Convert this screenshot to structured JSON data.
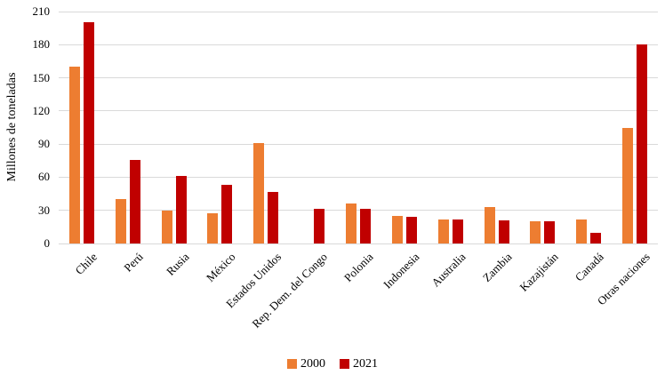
{
  "chart_data": {
    "type": "bar",
    "title": "",
    "xlabel": "",
    "ylabel": "Millones de toneladas",
    "ylim": [
      0,
      210
    ],
    "yticks": [
      0,
      30,
      60,
      90,
      120,
      150,
      180,
      210
    ],
    "grid": true,
    "legend_position": "bottom-center",
    "categories": [
      "Chile",
      "Perú",
      "Rusia",
      "México",
      "Estados Unidos",
      "Rep. Dem. del Congo",
      "Polonia",
      "Indonesia",
      "Australia",
      "Zambia",
      "Kazajistán",
      "Canadá",
      "Otras naciones"
    ],
    "series": [
      {
        "name": "2000",
        "color": "#ED7D31",
        "values": [
          160,
          40,
          30,
          27,
          91,
          null,
          36,
          25,
          22,
          33,
          20,
          22,
          105
        ]
      },
      {
        "name": "2021",
        "color": "#C00000",
        "values": [
          200,
          76,
          61,
          53,
          47,
          31,
          31,
          24,
          22,
          21,
          20,
          10,
          180
        ]
      }
    ]
  },
  "colors": {
    "gridline": "#D9D9D9",
    "text": "#000000",
    "background": "#FFFFFF"
  }
}
